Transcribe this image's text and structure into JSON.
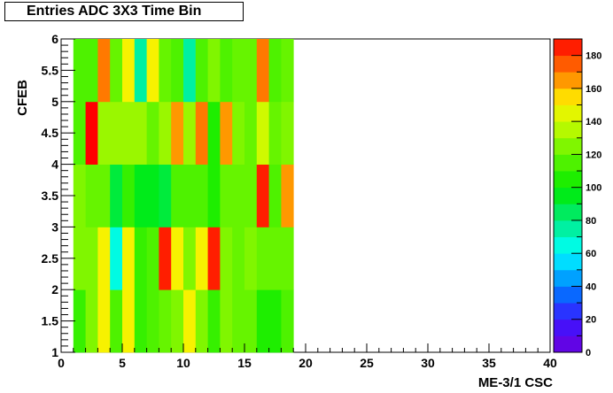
{
  "chart_data": {
    "type": "heatmap",
    "title": "Entries ADC 3X3 Time Bin",
    "xlabel": "ME-3/1 CSC",
    "ylabel": "CFEB",
    "xlim": [
      0,
      40
    ],
    "ylim": [
      1,
      6
    ],
    "zlim": [
      0,
      190
    ],
    "x_ticks": [
      0,
      5,
      10,
      15,
      20,
      25,
      30,
      35,
      40
    ],
    "y_ticks": [
      1,
      1.5,
      2,
      2.5,
      3,
      3.5,
      4,
      4.5,
      5,
      5.5,
      6
    ],
    "z_ticks": [
      0,
      20,
      40,
      60,
      80,
      100,
      120,
      140,
      160,
      180
    ],
    "x_bins": [
      1,
      2,
      3,
      4,
      5,
      6,
      7,
      8,
      9,
      10,
      11,
      12,
      13,
      14,
      15,
      16,
      17,
      18
    ],
    "y_bins": [
      {
        "lo": 1,
        "hi": 2
      },
      {
        "lo": 2,
        "hi": 3
      },
      {
        "lo": 3,
        "hi": 4
      },
      {
        "lo": 4,
        "hi": 5
      },
      {
        "lo": 5,
        "hi": 6
      }
    ],
    "values": [
      [
        110,
        125,
        150,
        115,
        150,
        110,
        115,
        120,
        125,
        150,
        125,
        110,
        125,
        120,
        120,
        105,
        105,
        115
      ],
      [
        125,
        125,
        150,
        65,
        150,
        110,
        115,
        185,
        150,
        125,
        150,
        185,
        125,
        120,
        125,
        120,
        120,
        120
      ],
      [
        125,
        120,
        120,
        90,
        110,
        95,
        95,
        90,
        115,
        115,
        115,
        105,
        120,
        120,
        120,
        185,
        115,
        165
      ],
      [
        115,
        190,
        130,
        130,
        130,
        130,
        120,
        130,
        165,
        130,
        170,
        105,
        165,
        125,
        120,
        140,
        120,
        125
      ],
      [
        115,
        115,
        170,
        120,
        150,
        75,
        150,
        120,
        115,
        75,
        115,
        125,
        115,
        120,
        120,
        170,
        115,
        120
      ]
    ],
    "grid": false,
    "colorbar": "right"
  }
}
